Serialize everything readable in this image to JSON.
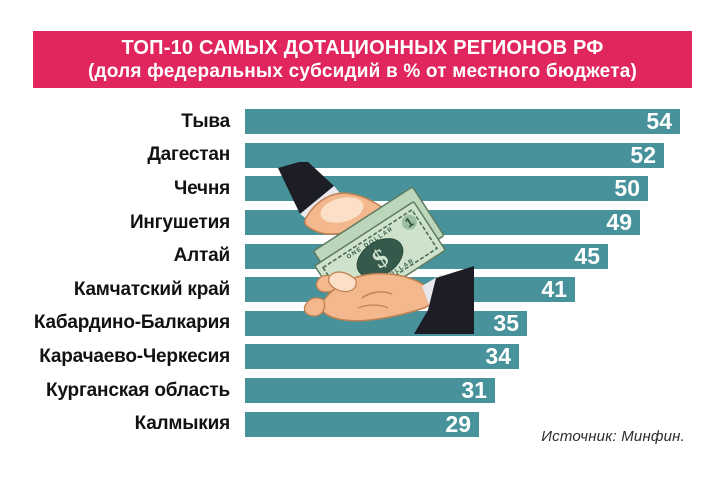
{
  "header": {
    "title_line1": "ТОП-10 САМЫХ ДОТАЦИОННЫХ РЕГИОНОВ РФ",
    "title_line2": "(доля федеральных субсидий в % от местного бюджета)",
    "bg_color": "#e0265c",
    "text_color": "#ffffff"
  },
  "chart_data": {
    "type": "bar",
    "orientation": "horizontal",
    "title": "ТОП-10 САМЫХ ДОТАЦИОННЫХ РЕГИОНОВ РФ (доля федеральных субсидий в % от местного бюджета)",
    "categories": [
      "Тыва",
      "Дагестан",
      "Чечня",
      "Ингушетия",
      "Алтай",
      "Камчатский край",
      "Кабардино-Балкария",
      "Карачаево-Черкесия",
      "Курганская область",
      "Калмыкия"
    ],
    "values": [
      54,
      52,
      50,
      49,
      45,
      41,
      35,
      34,
      31,
      29
    ],
    "xlabel": "",
    "ylabel": "",
    "xlim": [
      0,
      54
    ],
    "grid": false,
    "legend": false,
    "bar_color": "#48939b",
    "value_label_color": "#ffffff",
    "category_label_color": "#121212",
    "value_labels_inside_bars": true
  },
  "illustration": {
    "icon": "hands-exchanging-money-icon"
  },
  "footer": {
    "source": "Источник: Минфин."
  }
}
